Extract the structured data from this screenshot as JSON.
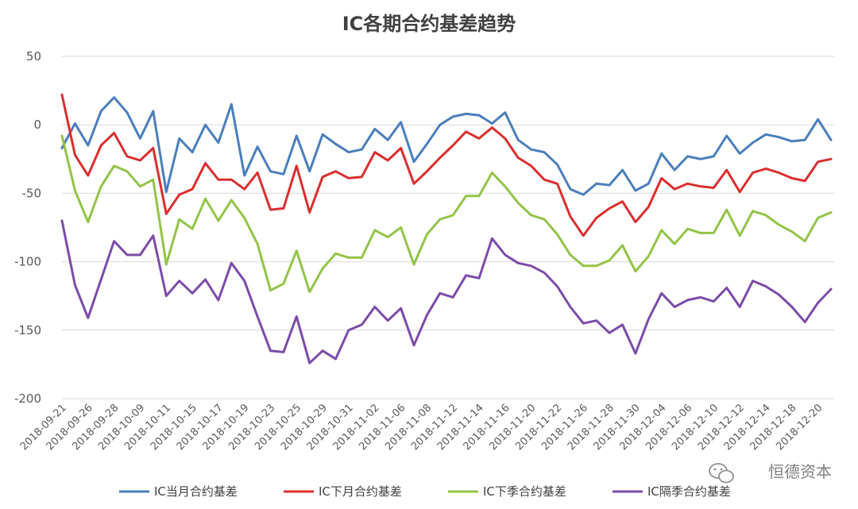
{
  "chart_data": {
    "type": "line",
    "title": "IC各期合约基差趋势",
    "xlabel": "",
    "ylabel": "",
    "ylim": [
      -200,
      50
    ],
    "yticks": [
      "50",
      "0",
      "-50",
      "-100",
      "-150",
      "-200"
    ],
    "xtick_labels": [
      "2018-09-21",
      "2018-09-26",
      "2018-09-28",
      "2018-10-09",
      "2018-10-11",
      "2018-10-15",
      "2018-10-17",
      "2018-10-19",
      "2018-10-23",
      "2018-10-25",
      "2018-10-29",
      "2018-10-31",
      "2018-11-02",
      "2018-11-06",
      "2018-11-08",
      "2018-11-12",
      "2018-11-14",
      "2018-11-16",
      "2018-11-20",
      "2018-11-22",
      "2018-11-26",
      "2018-11-28",
      "2018-11-30",
      "2018-12-04",
      "2018-12-06",
      "2018-12-10",
      "2018-12-12",
      "2018-12-14",
      "2018-12-18",
      "2018-12-20"
    ],
    "legend_position": "bottom",
    "grid": "horizontal",
    "series": [
      {
        "name": "IC当月合约基差",
        "color": "#4a7ebb",
        "values": [
          -17,
          1,
          -15,
          10,
          20,
          9,
          -10,
          10,
          -49,
          -10,
          -20,
          0,
          -13,
          15,
          -37,
          -16,
          -34,
          -36,
          -8,
          -34,
          -7,
          -14,
          -20,
          -18,
          -3,
          -11,
          2,
          -27,
          -14,
          0,
          6,
          8,
          7,
          1,
          9,
          -11,
          -18,
          -20,
          -29,
          -47,
          -51,
          -43,
          -44,
          -33,
          -48,
          -43,
          -21,
          -33,
          -23,
          -25,
          -23,
          -8,
          -21,
          -13,
          -7,
          -9,
          -12,
          -11,
          4,
          -11
        ]
      },
      {
        "name": "IC下月合约基差",
        "color": "#d92e2e",
        "values": [
          22,
          -22,
          -37,
          -15,
          -6,
          -23,
          -26,
          -17,
          -65,
          -51,
          -47,
          -28,
          -40,
          -40,
          -47,
          -35,
          -62,
          -61,
          -30,
          -64,
          -38,
          -34,
          -39,
          -38,
          -20,
          -26,
          -17,
          -43,
          -34,
          -24,
          -15,
          -5,
          -10,
          -2,
          -10,
          -24,
          -30,
          -40,
          -43,
          -67,
          -81,
          -68,
          -61,
          -56,
          -71,
          -60,
          -39,
          -47,
          -43,
          -45,
          -46,
          -33,
          -49,
          -35,
          -32,
          -35,
          -39,
          -41,
          -27,
          -25
        ]
      },
      {
        "name": "IC下季合约基差",
        "color": "#92c447",
        "values": [
          -8,
          -48,
          -71,
          -45,
          -30,
          -34,
          -45,
          -40,
          -102,
          -69,
          -76,
          -54,
          -70,
          -55,
          -68,
          -87,
          -121,
          -116,
          -92,
          -122,
          -105,
          -94,
          -97,
          -97,
          -77,
          -82,
          -75,
          -102,
          -80,
          -69,
          -66,
          -52,
          -52,
          -35,
          -45,
          -57,
          -66,
          -69,
          -80,
          -95,
          -103,
          -103,
          -99,
          -88,
          -107,
          -96,
          -77,
          -87,
          -76,
          -79,
          -79,
          -62,
          -81,
          -63,
          -66,
          -73,
          -78,
          -85,
          -68,
          -64
        ]
      },
      {
        "name": "IC隔季合约基差",
        "color": "#7b4ba8",
        "values": [
          -70,
          -117,
          -141,
          -113,
          -85,
          -95,
          -95,
          -81,
          -125,
          -114,
          -123,
          -113,
          -128,
          -101,
          -114,
          -140,
          -165,
          -166,
          -140,
          -174,
          -165,
          -171,
          -150,
          -146,
          -133,
          -143,
          -134,
          -161,
          -139,
          -123,
          -126,
          -110,
          -112,
          -83,
          -95,
          -101,
          -103,
          -108,
          -118,
          -133,
          -145,
          -143,
          -152,
          -146,
          -167,
          -142,
          -123,
          -133,
          -128,
          -126,
          -129,
          -119,
          -133,
          -114,
          -118,
          -124,
          -133,
          -144,
          -130,
          -120
        ]
      }
    ]
  },
  "watermark": {
    "text": "恒德资本",
    "icon": "wechat-icon"
  }
}
